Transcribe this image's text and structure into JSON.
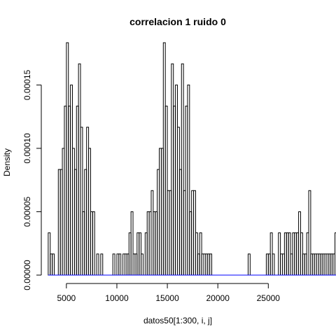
{
  "chart_data": {
    "type": "histogram",
    "title": "correlacion 1 ruido 0",
    "xlabel": "datos50[1:300, i, j]",
    "ylabel": "Density",
    "xlim": [
      3000,
      29000
    ],
    "ylim": [
      0,
      0.000185
    ],
    "bin_start": 3200,
    "bin_width": 200,
    "density_unit": 1.6667e-05,
    "densities": [
      2,
      1,
      1,
      0,
      0,
      5,
      5,
      6,
      8,
      11,
      8,
      9,
      6,
      5,
      8,
      10,
      7,
      3,
      5,
      7,
      6,
      3,
      3,
      0,
      1,
      0,
      1,
      0,
      0,
      0,
      0,
      0,
      1,
      0,
      1,
      1,
      0,
      1,
      1,
      1,
      2,
      3,
      1,
      1,
      2,
      2,
      1,
      0,
      2,
      3,
      3,
      4,
      3,
      3,
      5,
      6,
      6,
      11,
      8,
      4,
      4,
      10,
      8,
      9,
      7,
      5,
      10,
      4,
      8,
      9,
      3,
      4,
      4,
      2,
      1,
      2,
      1,
      1,
      1,
      1,
      1,
      0,
      0,
      0,
      0,
      0,
      0,
      0,
      0,
      0,
      0,
      0,
      0,
      0,
      0,
      0,
      0,
      0,
      0,
      1,
      0,
      0,
      0,
      0,
      0,
      0,
      0,
      0,
      1,
      1,
      2,
      1,
      0,
      0,
      2,
      1,
      1,
      2,
      2,
      2,
      1,
      2,
      2,
      2,
      3,
      2,
      1,
      1,
      2,
      4,
      1,
      1,
      1,
      1,
      1,
      1,
      1,
      1,
      1,
      1,
      1,
      1,
      2,
      2,
      2,
      3,
      1,
      1,
      2,
      2
    ],
    "x_ticks": [
      5000,
      10000,
      15000,
      20000,
      25000
    ],
    "x_tick_labels": [
      "5000",
      "10000",
      "15000",
      "20000",
      "25000"
    ],
    "y_ticks": [
      0,
      5e-05,
      0.0001,
      0.00015
    ],
    "y_tick_labels": [
      "0.00000",
      "0.00005",
      "0.00010",
      "0.00015"
    ],
    "bar_color": "#000000",
    "baseline_color": "#0000ff",
    "grid": false
  }
}
